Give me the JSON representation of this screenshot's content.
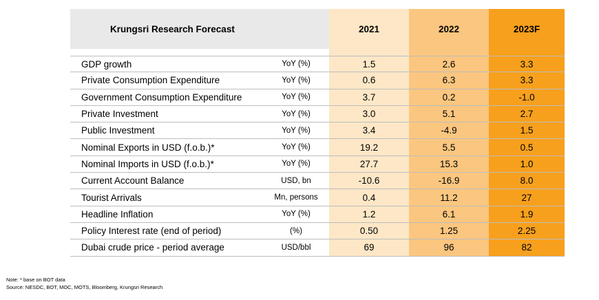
{
  "table": {
    "title": "Krungsri Research Forecast",
    "years": [
      "2021",
      "2022",
      "2023F"
    ],
    "rows": [
      {
        "label": "GDP growth",
        "unit": "YoY (%)",
        "v2021": "1.5",
        "v2022": "2.6",
        "v2023": "3.3"
      },
      {
        "label": "Private Consumption Expenditure",
        "unit": "YoY (%)",
        "v2021": "0.6",
        "v2022": "6.3",
        "v2023": "3.3"
      },
      {
        "label": "Government Consumption Expenditure",
        "unit": "YoY (%)",
        "v2021": "3.7",
        "v2022": "0.2",
        "v2023": "-1.0"
      },
      {
        "label": "Private Investment",
        "unit": "YoY (%)",
        "v2021": "3.0",
        "v2022": "5.1",
        "v2023": "2.7"
      },
      {
        "label": "Public Investment",
        "unit": "YoY (%)",
        "v2021": "3.4",
        "v2022": "-4.9",
        "v2023": "1.5"
      },
      {
        "label": "Nominal Exports in USD (f.o.b.)*",
        "unit": "YoY (%)",
        "v2021": "19.2",
        "v2022": "5.5",
        "v2023": "0.5"
      },
      {
        "label": "Nominal Imports in USD (f.o.b.)*",
        "unit": "YoY (%)",
        "v2021": "27.7",
        "v2022": "15.3",
        "v2023": "1.0"
      },
      {
        "label": "Current Account Balance",
        "unit": "USD, bn",
        "v2021": "-10.6",
        "v2022": "-16.9",
        "v2023": "8.0"
      },
      {
        "label": "Tourist Arrivals",
        "unit": "Mn, persons",
        "v2021": "0.4",
        "v2022": "11.2",
        "v2023": "27"
      },
      {
        "label": "Headline Inflation",
        "unit": "YoY (%)",
        "v2021": "1.2",
        "v2022": "6.1",
        "v2023": "1.9"
      },
      {
        "label": "Policy Interest rate (end of period)",
        "unit": "(%)",
        "v2021": "0.50",
        "v2022": "1.25",
        "v2023": "2.25"
      },
      {
        "label": "Dubai crude price - period average",
        "unit": "USD/bbl",
        "v2021": "69",
        "v2022": "96",
        "v2023": "82"
      }
    ]
  },
  "notes": {
    "note": "Note: * base on BOT data",
    "source": "Source: NESDC, BOT, MOC, MOTS, Bloomberg, Krungsri Research"
  },
  "colors": {
    "col2021": "#fde7c6",
    "col2022": "#fbc67f",
    "col2023": "#f7a01d",
    "header_grey": "#e9e9e9"
  }
}
